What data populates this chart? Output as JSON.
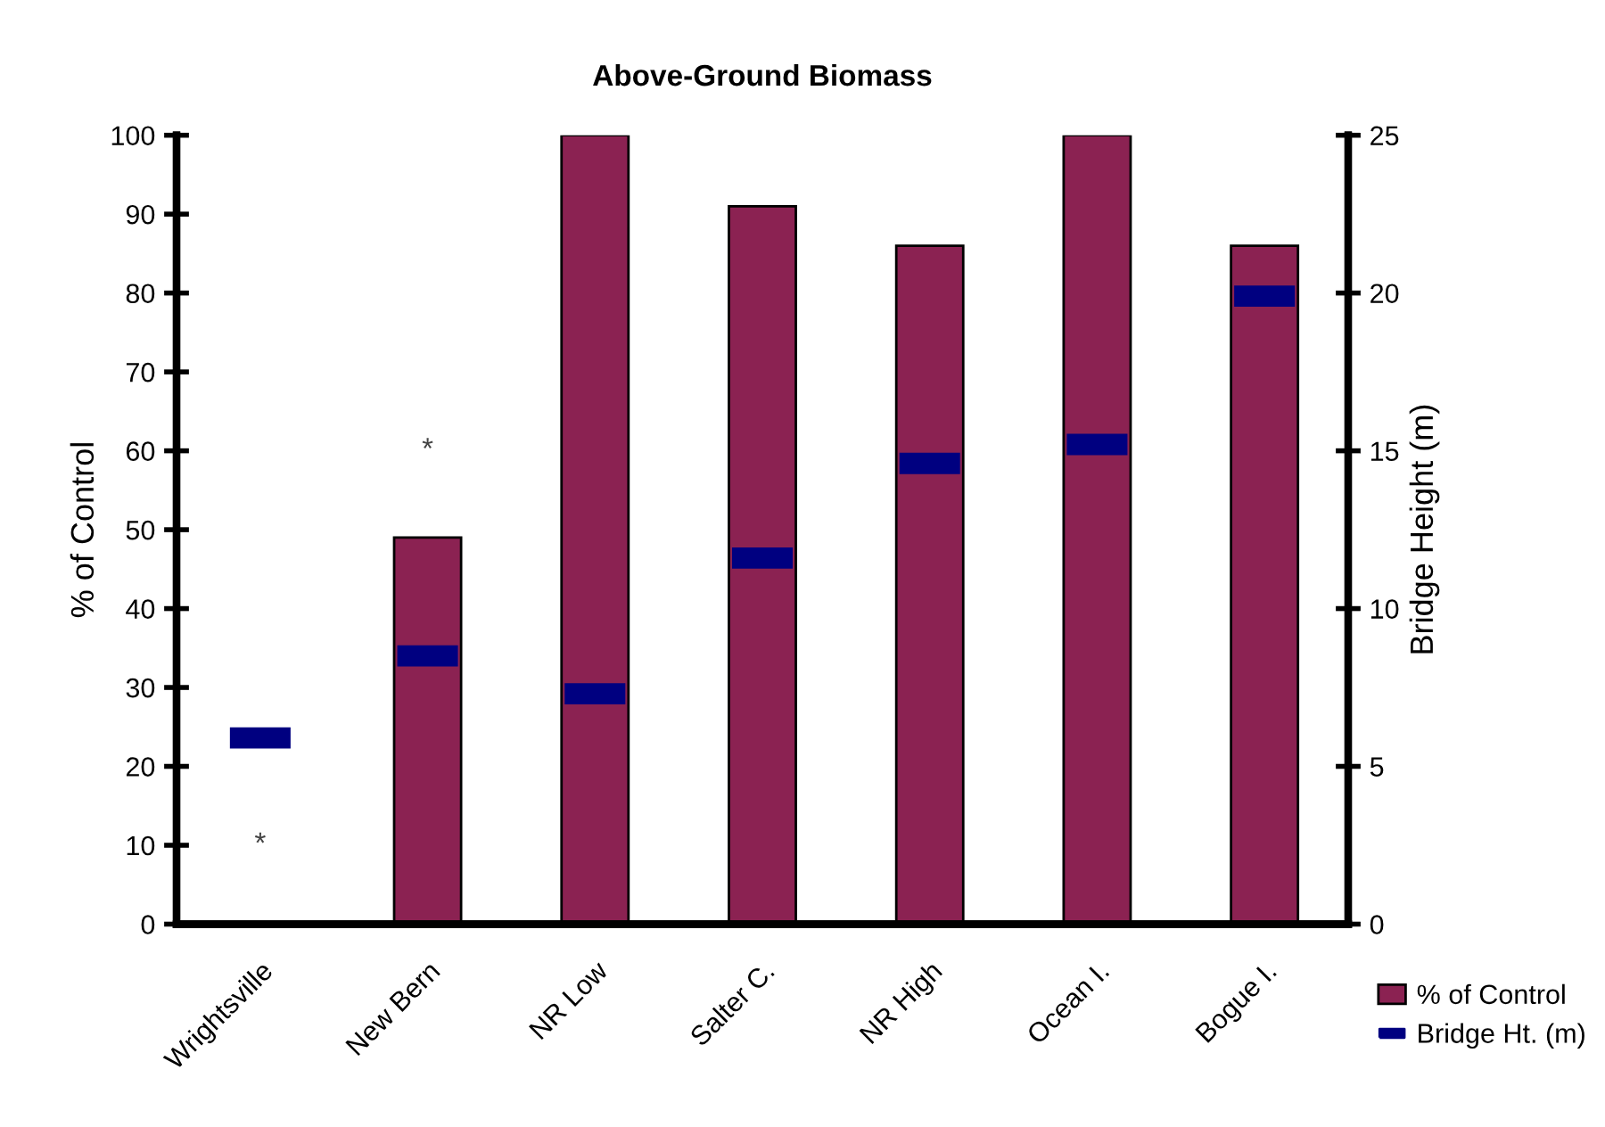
{
  "chart_data": {
    "type": "bar",
    "title": "Above-Ground Biomass",
    "ylabel": "% of Control",
    "y2label": "Bridge Height (m)",
    "categories": [
      "Wrightsville",
      "New Bern",
      "NR Low",
      "Salter C.",
      "NR High",
      "Ocean I.",
      "Bogue I."
    ],
    "series": [
      {
        "name": "% of Control",
        "color": "#8b2252",
        "values": [
          null,
          49,
          100,
          91,
          86,
          100,
          86
        ]
      },
      {
        "name": "Bridge Ht. (m)",
        "type": "scatter",
        "marker": "square",
        "axis": "y2",
        "color": "#000080",
        "values": [
          5.9,
          8.5,
          7.3,
          11.6,
          14.6,
          15.2,
          19.9
        ]
      }
    ],
    "ylim": [
      0,
      100
    ],
    "yticks": [
      0,
      10,
      20,
      30,
      40,
      50,
      60,
      70,
      80,
      90,
      100
    ],
    "y2lim": [
      0,
      25
    ],
    "y2ticks": [
      0,
      5,
      10,
      15,
      20,
      25
    ],
    "annotations": [
      "*",
      "*"
    ],
    "grid": false,
    "legend": "bottom right"
  }
}
